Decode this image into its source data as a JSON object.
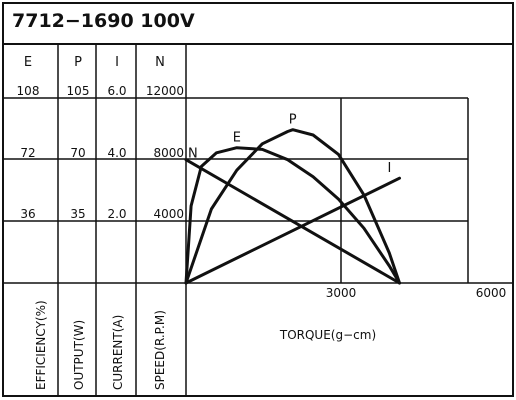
{
  "chart_data": {
    "type": "line",
    "title": "7712−1690   100V",
    "columns": [
      {
        "key": "efficiency",
        "header": "E",
        "axis_label": "EFFICIENCY(%)",
        "ticks": [
          "108",
          "72",
          "36"
        ],
        "max": 108
      },
      {
        "key": "output",
        "header": "P",
        "axis_label": "OUTPUT(W)",
        "ticks": [
          "105",
          "70",
          "35"
        ],
        "max": 105
      },
      {
        "key": "current",
        "header": "I",
        "axis_label": "CURRENT(A)",
        "ticks": [
          "6.0",
          "4.0",
          "2.0"
        ],
        "max": 6.0
      },
      {
        "key": "speed",
        "header": "N",
        "axis_label": "SPEED(R.P.M)",
        "ticks": [
          "12000",
          "8000",
          "4000"
        ],
        "max": 12000
      }
    ],
    "xlabel": "TORQUE(g−cm)",
    "x_ticks": [
      "3000",
      "6000"
    ],
    "xlim": [
      0,
      6000
    ],
    "grid": true,
    "series": [
      {
        "name": "N",
        "unit_key": "speed",
        "x": [
          0,
          4200
        ],
        "y": [
          8000,
          0
        ]
      },
      {
        "name": "I",
        "unit_key": "current",
        "x": [
          0,
          4200
        ],
        "y": [
          0,
          3.4
        ]
      },
      {
        "name": "P",
        "unit_key": "output",
        "x": [
          0,
          500,
          1000,
          1500,
          2000,
          2100,
          2500,
          3000,
          3500,
          4000,
          4200
        ],
        "y": [
          0,
          42,
          64,
          79,
          86,
          87,
          84,
          73,
          50,
          17,
          0
        ]
      },
      {
        "name": "E",
        "unit_key": "efficiency",
        "x": [
          0,
          100,
          300,
          600,
          1000,
          1500,
          2000,
          2500,
          3000,
          3500,
          4000,
          4200
        ],
        "y": [
          0,
          45,
          68,
          76,
          79,
          78,
          72,
          62,
          49,
          32,
          10,
          0
        ]
      }
    ]
  }
}
